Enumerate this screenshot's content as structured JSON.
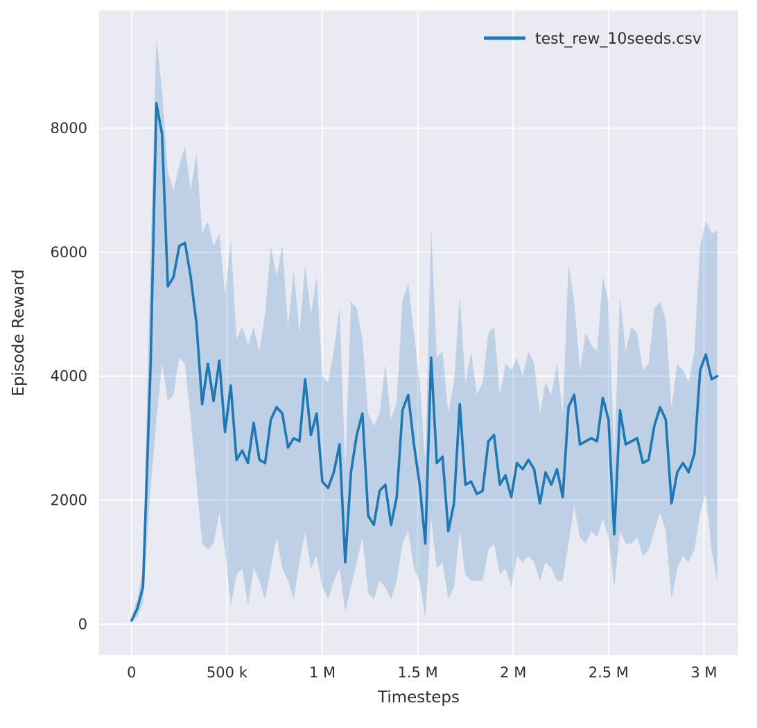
{
  "chart_data": {
    "type": "line",
    "title": "",
    "xlabel": "Timesteps",
    "ylabel": "Episode Reward",
    "x_units": "thousands of timesteps",
    "legend_position": "upper right",
    "grid": true,
    "xlim": [
      -170,
      3180
    ],
    "ylim": [
      -500,
      9900
    ],
    "x_ticks": [
      {
        "value": 0,
        "label": "0"
      },
      {
        "value": 500,
        "label": "500 k"
      },
      {
        "value": 1000,
        "label": "1 M"
      },
      {
        "value": 1500,
        "label": "1.5 M"
      },
      {
        "value": 2000,
        "label": "2 M"
      },
      {
        "value": 2500,
        "label": "2.5 M"
      },
      {
        "value": 3000,
        "label": "3 M"
      }
    ],
    "y_ticks": [
      {
        "value": 0,
        "label": "0"
      },
      {
        "value": 2000,
        "label": "2000"
      },
      {
        "value": 4000,
        "label": "4000"
      },
      {
        "value": 6000,
        "label": "6000"
      },
      {
        "value": 8000,
        "label": "8000"
      }
    ],
    "x": [
      0,
      30,
      60,
      100,
      130,
      160,
      190,
      220,
      250,
      280,
      310,
      340,
      370,
      400,
      430,
      460,
      490,
      520,
      550,
      580,
      610,
      640,
      670,
      700,
      730,
      760,
      790,
      820,
      850,
      880,
      910,
      940,
      970,
      1000,
      1030,
      1060,
      1090,
      1120,
      1150,
      1180,
      1210,
      1240,
      1270,
      1300,
      1330,
      1360,
      1390,
      1420,
      1450,
      1480,
      1510,
      1540,
      1570,
      1600,
      1630,
      1660,
      1690,
      1720,
      1750,
      1780,
      1810,
      1840,
      1870,
      1900,
      1930,
      1960,
      1990,
      2020,
      2050,
      2080,
      2110,
      2140,
      2170,
      2200,
      2230,
      2260,
      2290,
      2320,
      2350,
      2380,
      2410,
      2440,
      2470,
      2500,
      2530,
      2560,
      2590,
      2620,
      2650,
      2680,
      2710,
      2740,
      2770,
      2800,
      2830,
      2860,
      2890,
      2920,
      2950,
      2980,
      3010,
      3040,
      3070
    ],
    "series": [
      {
        "name": "test_rew_10seeds.csv",
        "mean": [
          60,
          250,
          600,
          4200,
          8400,
          7900,
          5450,
          5600,
          6100,
          6150,
          5600,
          4850,
          3550,
          4200,
          3600,
          4250,
          3100,
          3850,
          2650,
          2800,
          2600,
          3250,
          2650,
          2600,
          3300,
          3500,
          3400,
          2850,
          3000,
          2950,
          3950,
          3050,
          3400,
          2300,
          2200,
          2450,
          2900,
          1000,
          2450,
          3050,
          3400,
          1750,
          1600,
          2150,
          2250,
          1600,
          2050,
          3450,
          3700,
          2900,
          2250,
          1300,
          4300,
          2600,
          2700,
          1500,
          1950,
          3550,
          2250,
          2300,
          2100,
          2150,
          2950,
          3050,
          2250,
          2400,
          2050,
          2600,
          2500,
          2650,
          2500,
          1950,
          2450,
          2250,
          2500,
          2050,
          3500,
          3700,
          2900,
          2950,
          3000,
          2950,
          3650,
          3300,
          1450,
          3450,
          2900,
          2950,
          3000,
          2600,
          2650,
          3200,
          3500,
          3300,
          1950,
          2450,
          2600,
          2450,
          2750,
          4100,
          4350,
          3950,
          4000
        ],
        "upper": [
          120,
          400,
          900,
          6000,
          9450,
          8600,
          7300,
          7000,
          7400,
          7700,
          7000,
          7600,
          6300,
          6500,
          6100,
          6300,
          5300,
          6200,
          4600,
          4800,
          4500,
          4800,
          4400,
          5000,
          6100,
          5600,
          6100,
          4800,
          5700,
          4700,
          5800,
          5000,
          5600,
          4000,
          3900,
          4400,
          5100,
          2500,
          5200,
          5100,
          4600,
          3400,
          3200,
          3400,
          4200,
          3300,
          3600,
          5200,
          5500,
          4700,
          3900,
          2600,
          6400,
          4300,
          4400,
          3400,
          3900,
          5300,
          3900,
          4400,
          3700,
          3900,
          4700,
          4800,
          3700,
          4200,
          4100,
          4300,
          4000,
          4400,
          4200,
          3400,
          3900,
          3700,
          4200,
          3400,
          5800,
          5200,
          4100,
          4700,
          4500,
          4400,
          5600,
          5200,
          2700,
          5300,
          4400,
          4800,
          4700,
          4100,
          4200,
          5100,
          5200,
          4900,
          3500,
          4200,
          4100,
          3900,
          4400,
          6100,
          6500,
          6300,
          6350
        ],
        "lower": [
          20,
          120,
          350,
          2200,
          3300,
          4200,
          3600,
          3700,
          4300,
          4200,
          3300,
          2300,
          1300,
          1200,
          1300,
          1800,
          1200,
          300,
          800,
          900,
          300,
          900,
          700,
          400,
          900,
          1400,
          900,
          700,
          400,
          1000,
          1500,
          900,
          1100,
          600,
          400,
          700,
          900,
          200,
          600,
          1000,
          1400,
          500,
          400,
          700,
          600,
          400,
          700,
          1300,
          1500,
          900,
          700,
          100,
          1700,
          900,
          1000,
          400,
          600,
          1500,
          800,
          700,
          700,
          700,
          1200,
          1300,
          800,
          900,
          600,
          1100,
          1000,
          1100,
          1000,
          700,
          1000,
          900,
          700,
          700,
          1300,
          1900,
          1400,
          1300,
          1500,
          1400,
          1700,
          1400,
          600,
          1500,
          1300,
          1300,
          1400,
          1100,
          1200,
          1500,
          1800,
          1500,
          400,
          900,
          1100,
          1000,
          1200,
          1800,
          2100,
          1200,
          700
        ]
      }
    ],
    "colors": {
      "line": "#1f77b4",
      "band": "#1f77b4",
      "band_opacity": 0.22,
      "plot_background": "#eaeaf2",
      "grid": "#ffffff",
      "figure_background": "#ffffff",
      "text": "#2e2e2e"
    }
  }
}
